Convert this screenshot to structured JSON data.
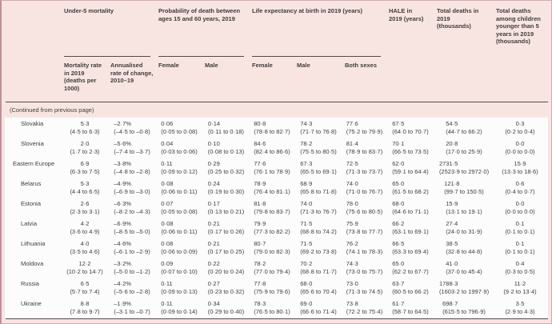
{
  "theme": {
    "pink_background": "#f8e5e1",
    "frame_border": "#c48e9c",
    "rule_color": "#4d4d4d",
    "text_color": "#3d3d3d",
    "row_background": "#fdfcfc"
  },
  "header": {
    "groups": [
      {
        "label": "Under-5 mortality"
      },
      {
        "label": "Probability of death between ages 15 and 60 years, 2019"
      },
      {
        "label": "Life expectancy at birth in 2019 (years)"
      },
      {
        "label": "HALE in 2019 (years)"
      },
      {
        "label": "Total deaths in 2019 (thousands)"
      },
      {
        "label": "Total deaths among children younger than 5 years in 2019 (thousands)"
      }
    ],
    "subheads": [
      "Mortality rate in 2019 (deaths per 1000)",
      "Annualised rate of change, 2010–19",
      "Female",
      "Male",
      "Female",
      "Male",
      "Both sexes"
    ]
  },
  "continued_note": "(Continued from previous page)",
  "rows": [
    {
      "label": "Slovakia",
      "indent": true,
      "cells": [
        {
          "v": "5·3",
          "ci": "(4·5 to 6·3)"
        },
        {
          "v": "–2·7%",
          "ci": "(–4·5 to –0·8)"
        },
        {
          "v": "0·06",
          "ci": "(0·05 to 0·08)"
        },
        {
          "v": "0·14",
          "ci": "(0·11 to 0·18)"
        },
        {
          "v": "80·8",
          "ci": "(78·8 to 82·7)"
        },
        {
          "v": "74·3",
          "ci": "(71·7 to 76·8)"
        },
        {
          "v": "77·6",
          "ci": "(75·2 to 79·9)"
        },
        {
          "v": "67·5",
          "ci": "(64·0 to 70·7)"
        },
        {
          "v": "54·5",
          "ci": "(44·7 to 66·2)"
        },
        {
          "v": "0·3",
          "ci": "(0·2 to 0·4)"
        }
      ]
    },
    {
      "label": "Slovenia",
      "indent": true,
      "cells": [
        {
          "v": "2·0",
          "ci": "(1·7 to 2·3)"
        },
        {
          "v": "–5·6%",
          "ci": "(–7·4 to –3·7)"
        },
        {
          "v": "0·04",
          "ci": "(0·03 to 0·06)"
        },
        {
          "v": "0·10",
          "ci": "(0·08 to 0·13)"
        },
        {
          "v": "84·6",
          "ci": "(82·4 to 86·6)"
        },
        {
          "v": "78·2",
          "ci": "(75·5 to 80·5)"
        },
        {
          "v": "81·4",
          "ci": "(78·9 to 83·7)"
        },
        {
          "v": "70·1",
          "ci": "(66·5 to 73·5)"
        },
        {
          "v": "20·8",
          "ci": "(17·0 to 25·9)"
        },
        {
          "v": "0·0",
          "ci": "(0·0 to 0·0)"
        }
      ]
    },
    {
      "label": "Eastern Europe",
      "indent": false,
      "cells": [
        {
          "v": "6·9",
          "ci": "(6·3 to 7·5)"
        },
        {
          "v": "–3·8%",
          "ci": "(–4·8 to –2·8)"
        },
        {
          "v": "0·11",
          "ci": "(0·09 to 0·12)"
        },
        {
          "v": "0·29",
          "ci": "(0·25 to 0·32)"
        },
        {
          "v": "77·6",
          "ci": "(76·1 to 78·9)"
        },
        {
          "v": "67·3",
          "ci": "(65·5 to 69·1)"
        },
        {
          "v": "72·5",
          "ci": "(71·3 to 73·7)"
        },
        {
          "v": "62·0",
          "ci": "(59·1 to 64·4)"
        },
        {
          "v": "2731·5",
          "ci": "(2523·9 to 2972·0)"
        },
        {
          "v": "15·9",
          "ci": "(13·3 to 18·6)"
        }
      ]
    },
    {
      "label": "Belarus",
      "indent": true,
      "cells": [
        {
          "v": "5·3",
          "ci": "(4·4 to 6·5)"
        },
        {
          "v": "–4·9%",
          "ci": "(–6·9 to –3·0)"
        },
        {
          "v": "0·08",
          "ci": "(0·06 to 0·11)"
        },
        {
          "v": "0·24",
          "ci": "(0·19 to 0·30)"
        },
        {
          "v": "78·9",
          "ci": "(76·4 to 81·1)"
        },
        {
          "v": "68·9",
          "ci": "(65·8 to 71·8)"
        },
        {
          "v": "74·0",
          "ci": "(71·0 to 76·7)"
        },
        {
          "v": "65·0",
          "ci": "(61·5 to 68·2)"
        },
        {
          "v": "121·8",
          "ci": "(99·7 to 150·5)"
        },
        {
          "v": "0·6",
          "ci": "(0·4 to 0·7)"
        }
      ]
    },
    {
      "label": "Estonia",
      "indent": true,
      "cells": [
        {
          "v": "2·6",
          "ci": "(2·3 to 3·1)"
        },
        {
          "v": "–6·3%",
          "ci": "(–8·2 to –4·3)"
        },
        {
          "v": "0·07",
          "ci": "(0·05 to 0·08)"
        },
        {
          "v": "0·17",
          "ci": "(0·13 to 0·21)"
        },
        {
          "v": "81·8",
          "ci": "(79·8 to 83·7)"
        },
        {
          "v": "74·0",
          "ci": "(71·3 to 76·7)"
        },
        {
          "v": "78·0",
          "ci": "(75·6 to 80·5)"
        },
        {
          "v": "68·0",
          "ci": "(64·6 to 71·1)"
        },
        {
          "v": "15·9",
          "ci": "(13·1 to 19·1)"
        },
        {
          "v": "0·0",
          "ci": "(0·0 to 0·0)"
        }
      ]
    },
    {
      "label": "Latvia",
      "indent": true,
      "cells": [
        {
          "v": "4·2",
          "ci": "(3·6 to 4·9)"
        },
        {
          "v": "–6·9%",
          "ci": "(–8·5 to –5·0)"
        },
        {
          "v": "0·08",
          "ci": "(0·06 to 0·11)"
        },
        {
          "v": "0·21",
          "ci": "(0·17 to 0·26)"
        },
        {
          "v": "79·9",
          "ci": "(77·3 to 82·2)"
        },
        {
          "v": "71·5",
          "ci": "(68·8 to 74·2)"
        },
        {
          "v": "75·9",
          "ci": "(73·8 to 77·7)"
        },
        {
          "v": "66·2",
          "ci": "(63·1 to 69·1)"
        },
        {
          "v": "27·4",
          "ci": "(24·0 to 31·9)"
        },
        {
          "v": "0·1",
          "ci": "(0·1 to 0·1)"
        }
      ]
    },
    {
      "label": "Lithuania",
      "indent": true,
      "cells": [
        {
          "v": "4·0",
          "ci": "(3·5 to 4·6)"
        },
        {
          "v": "–4·6%",
          "ci": "(–6·1 to –2·9)"
        },
        {
          "v": "0·08",
          "ci": "(0·06 to 0·09)"
        },
        {
          "v": "0·21",
          "ci": "(0·17 to 0·25)"
        },
        {
          "v": "80·7",
          "ci": "(79·0 to 82·3)"
        },
        {
          "v": "71·5",
          "ci": "(69·2 to 73·8)"
        },
        {
          "v": "76·2",
          "ci": "(74·1 to 78·3)"
        },
        {
          "v": "66·5",
          "ci": "(63·3 to 69·4)"
        },
        {
          "v": "38·5",
          "ci": "(32·8 to 44·8)"
        },
        {
          "v": "0·1",
          "ci": "(0·1 to 0·1)"
        }
      ]
    },
    {
      "label": "Moldova",
      "indent": true,
      "cells": [
        {
          "v": "12·2",
          "ci": "(10·2 to 14·7)"
        },
        {
          "v": "–3·2%",
          "ci": "(–5·0 to –1·2)"
        },
        {
          "v": "0·09",
          "ci": "(0·07 to 0·10)"
        },
        {
          "v": "0·22",
          "ci": "(0·20 to 0·24)"
        },
        {
          "v": "78·2",
          "ci": "(77·0 to 79·4)"
        },
        {
          "v": "70·2",
          "ci": "(68·8 to 71·7)"
        },
        {
          "v": "74·3",
          "ci": "(73·0 to 75·7)"
        },
        {
          "v": "65·0",
          "ci": "(62·2 to 67·7)"
        },
        {
          "v": "41·0",
          "ci": "(37·0 to 45·4)"
        },
        {
          "v": "0·4",
          "ci": "(0·3 to 0·5)"
        }
      ]
    },
    {
      "label": "Russia",
      "indent": true,
      "cells": [
        {
          "v": "6·5",
          "ci": "(5·7 to 7·4)"
        },
        {
          "v": "–4·2%",
          "ci": "(–5·6 to –2·8)"
        },
        {
          "v": "0·11",
          "ci": "(0·09 to 0·13)"
        },
        {
          "v": "0·27",
          "ci": "(0·23 to 0·32)"
        },
        {
          "v": "77·8",
          "ci": "(75·9 to 79·6)"
        },
        {
          "v": "68·0",
          "ci": "(65·6 to 70·4)"
        },
        {
          "v": "73·0",
          "ci": "(71·3 to 74·5)"
        },
        {
          "v": "63·7",
          "ci": "(60·5 to 66·2)"
        },
        {
          "v": "1788·3",
          "ci": "(1603·2 to 1997·9)"
        },
        {
          "v": "11·2",
          "ci": "(9·2 to 13·4)"
        }
      ]
    },
    {
      "label": "Ukraine",
      "indent": true,
      "cells": [
        {
          "v": "8·8",
          "ci": "(7·8 to 9·7)"
        },
        {
          "v": "–1·9%",
          "ci": "(–3·1 to –0·7)"
        },
        {
          "v": "0·11",
          "ci": "(0·09 to 0·14)"
        },
        {
          "v": "0·34",
          "ci": "(0·29 to 0·40)"
        },
        {
          "v": "78·3",
          "ci": "(76·5 to 80·1)"
        },
        {
          "v": "69·0",
          "ci": "(66·6 to 71·4)"
        },
        {
          "v": "73·8",
          "ci": "(72·2 to 75·4)"
        },
        {
          "v": "61·7",
          "ci": "(58·7 to 64·5)"
        },
        {
          "v": "698·7",
          "ci": "(615·5 to 796·9)"
        },
        {
          "v": "3·5",
          "ci": "(2·9 to 4·3)"
        }
      ]
    }
  ]
}
